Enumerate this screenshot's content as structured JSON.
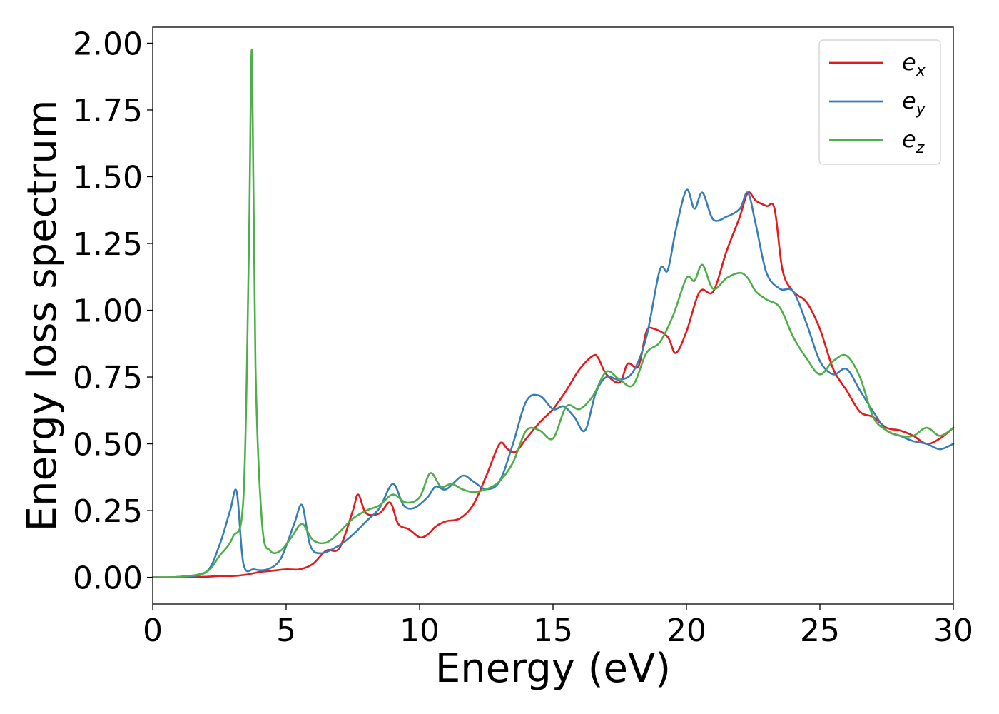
{
  "chart_data": {
    "type": "line",
    "title": "",
    "xlabel": "Energy (eV)",
    "ylabel": "Energy loss spectrum",
    "xlim": [
      0,
      30
    ],
    "ylim": [
      -0.1,
      2.06
    ],
    "xticks": [
      0,
      5,
      10,
      15,
      20,
      25,
      30
    ],
    "xtick_labels": [
      "0",
      "5",
      "10",
      "15",
      "20",
      "25",
      "30"
    ],
    "yticks": [
      0.0,
      0.25,
      0.5,
      0.75,
      1.0,
      1.25,
      1.5,
      1.75,
      2.0
    ],
    "ytick_labels": [
      "0.00",
      "0.25",
      "0.50",
      "0.75",
      "1.00",
      "1.25",
      "1.50",
      "1.75",
      "2.00"
    ],
    "grid": false,
    "legend_position": "top-right",
    "series": [
      {
        "name": "e",
        "subscript": "x",
        "color": "#e41a1c",
        "x": [
          0,
          1,
          2,
          2.5,
          3,
          3.5,
          4,
          4.5,
          5,
          5.5,
          6,
          6.5,
          7,
          7.5,
          7.7,
          8,
          8.5,
          8.9,
          9.2,
          9.6,
          10,
          10.3,
          10.6,
          11,
          11.5,
          12,
          12.5,
          13,
          13.3,
          13.6,
          14,
          14.5,
          15,
          15.5,
          16,
          16.5,
          16.7,
          17,
          17.5,
          17.8,
          18.2,
          18.5,
          18.8,
          19.3,
          19.6,
          20,
          20.5,
          21,
          21.5,
          22,
          22.3,
          22.6,
          23,
          23.3,
          23.6,
          24,
          24.5,
          25,
          25.5,
          26,
          26.5,
          27,
          27.5,
          28,
          28.5,
          29,
          29.5,
          30
        ],
        "y": [
          0,
          0,
          0.002,
          0.005,
          0.005,
          0.01,
          0.02,
          0.025,
          0.03,
          0.03,
          0.05,
          0.1,
          0.11,
          0.25,
          0.31,
          0.24,
          0.24,
          0.28,
          0.2,
          0.18,
          0.15,
          0.16,
          0.19,
          0.21,
          0.22,
          0.27,
          0.38,
          0.5,
          0.48,
          0.47,
          0.52,
          0.58,
          0.63,
          0.7,
          0.78,
          0.83,
          0.82,
          0.76,
          0.73,
          0.8,
          0.79,
          0.92,
          0.93,
          0.9,
          0.84,
          0.92,
          1.07,
          1.07,
          1.22,
          1.35,
          1.44,
          1.41,
          1.39,
          1.38,
          1.15,
          1.07,
          1.03,
          0.93,
          0.78,
          0.7,
          0.62,
          0.6,
          0.56,
          0.55,
          0.53,
          0.5,
          0.52,
          0.56
        ]
      },
      {
        "name": "e",
        "subscript": "y",
        "color": "#377eb8",
        "x": [
          0,
          1,
          2,
          2.5,
          2.9,
          3.15,
          3.4,
          3.8,
          4.3,
          4.8,
          5.3,
          5.6,
          5.9,
          6.3,
          7,
          7.5,
          8,
          8.5,
          9,
          9.4,
          9.8,
          10.3,
          10.6,
          11,
          11.6,
          12,
          12.5,
          13,
          13.5,
          14,
          14.5,
          15,
          15.4,
          15.8,
          16.2,
          16.6,
          17,
          17.5,
          18,
          18.5,
          19,
          19.3,
          19.6,
          20,
          20.3,
          20.6,
          21,
          21.5,
          22,
          22.3,
          22.6,
          23,
          23.5,
          24,
          24.5,
          25,
          25.5,
          26,
          26.5,
          27,
          27.5,
          28,
          28.5,
          29,
          29.5,
          30
        ],
        "y": [
          0,
          0.002,
          0.02,
          0.12,
          0.25,
          0.32,
          0.05,
          0.03,
          0.03,
          0.07,
          0.2,
          0.27,
          0.12,
          0.09,
          0.12,
          0.16,
          0.21,
          0.26,
          0.35,
          0.27,
          0.26,
          0.3,
          0.34,
          0.33,
          0.38,
          0.36,
          0.33,
          0.36,
          0.5,
          0.66,
          0.68,
          0.63,
          0.64,
          0.6,
          0.55,
          0.69,
          0.75,
          0.74,
          0.77,
          0.9,
          1.15,
          1.15,
          1.3,
          1.45,
          1.38,
          1.44,
          1.34,
          1.35,
          1.38,
          1.44,
          1.32,
          1.14,
          1.08,
          1.07,
          0.95,
          0.81,
          0.76,
          0.78,
          0.7,
          0.62,
          0.55,
          0.53,
          0.51,
          0.5,
          0.48,
          0.5
        ]
      },
      {
        "name": "e",
        "subscript": "z",
        "color": "#4daf4a",
        "x": [
          0,
          1,
          2,
          2.5,
          3,
          3.4,
          3.6,
          3.72,
          3.85,
          4.1,
          4.4,
          4.8,
          5.2,
          5.6,
          6,
          6.5,
          7,
          7.5,
          8,
          8.5,
          9,
          9.5,
          10,
          10.4,
          10.8,
          11.2,
          11.6,
          12,
          12.5,
          13,
          13.5,
          14,
          14.5,
          15,
          15.5,
          16,
          16.5,
          17,
          17.5,
          18,
          18.5,
          19,
          19.5,
          20,
          20.3,
          20.6,
          21,
          21.5,
          22,
          22.3,
          22.6,
          23,
          23.5,
          24,
          24.5,
          25,
          25.5,
          26,
          26.5,
          27,
          27.5,
          28,
          28.5,
          29,
          29.5,
          30
        ],
        "y": [
          0,
          0.002,
          0.02,
          0.08,
          0.15,
          0.3,
          1.2,
          1.97,
          0.8,
          0.2,
          0.1,
          0.1,
          0.15,
          0.2,
          0.14,
          0.13,
          0.17,
          0.22,
          0.25,
          0.27,
          0.31,
          0.28,
          0.3,
          0.39,
          0.34,
          0.35,
          0.33,
          0.32,
          0.33,
          0.36,
          0.43,
          0.55,
          0.55,
          0.52,
          0.64,
          0.63,
          0.68,
          0.77,
          0.74,
          0.72,
          0.84,
          0.88,
          0.98,
          1.12,
          1.11,
          1.17,
          1.08,
          1.12,
          1.14,
          1.12,
          1.07,
          1.04,
          1.01,
          0.9,
          0.82,
          0.76,
          0.81,
          0.83,
          0.75,
          0.6,
          0.55,
          0.53,
          0.53,
          0.56,
          0.53,
          0.56
        ]
      }
    ]
  }
}
